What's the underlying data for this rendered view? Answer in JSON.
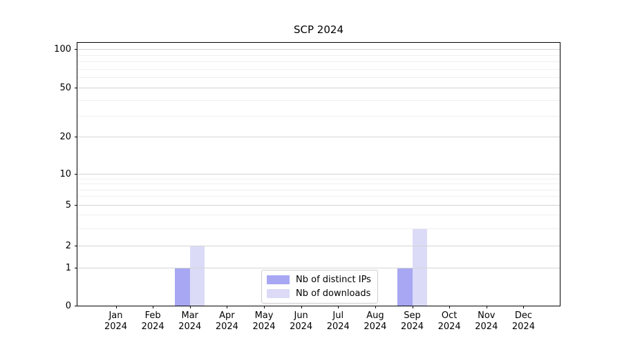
{
  "title": "SCP 2024",
  "legend": {
    "items": [
      {
        "label": "Nb of distinct IPs"
      },
      {
        "label": "Nb of downloads"
      }
    ]
  },
  "colors": {
    "distinct_ips_bar": "#a7a7f3",
    "downloads_bar": "#dbdbf8",
    "grid_major": "#d4d4d4",
    "grid_minor": "#efefef",
    "axis": "#000000"
  },
  "yaxis": {
    "tick_labels": [
      "100",
      "50",
      "20",
      "10",
      "5",
      "2",
      "1",
      "0"
    ],
    "tick_values": [
      100,
      50,
      20,
      10,
      5,
      2,
      1,
      0
    ]
  },
  "xaxis": {
    "months": [
      {
        "label": "Jan",
        "year": "2024"
      },
      {
        "label": "Feb",
        "year": "2024"
      },
      {
        "label": "Mar",
        "year": "2024"
      },
      {
        "label": "Apr",
        "year": "2024"
      },
      {
        "label": "May",
        "year": "2024"
      },
      {
        "label": "Jun",
        "year": "2024"
      },
      {
        "label": "Jul",
        "year": "2024"
      },
      {
        "label": "Aug",
        "year": "2024"
      },
      {
        "label": "Sep",
        "year": "2024"
      },
      {
        "label": "Oct",
        "year": "2024"
      },
      {
        "label": "Nov",
        "year": "2024"
      },
      {
        "label": "Dec",
        "year": "2024"
      }
    ]
  },
  "chart_data": {
    "type": "bar",
    "title": "SCP 2024",
    "categories": [
      "Jan 2024",
      "Feb 2024",
      "Mar 2024",
      "Apr 2024",
      "May 2024",
      "Jun 2024",
      "Jul 2024",
      "Aug 2024",
      "Sep 2024",
      "Oct 2024",
      "Nov 2024",
      "Dec 2024"
    ],
    "series": [
      {
        "name": "Nb of distinct IPs",
        "color": "#a7a7f3",
        "values": [
          0,
          0,
          1,
          0,
          0,
          0,
          0,
          0,
          1,
          0,
          0,
          0
        ]
      },
      {
        "name": "Nb of downloads",
        "color": "#dbdbf8",
        "values": [
          0,
          0,
          2,
          0,
          0,
          0,
          0,
          0,
          3,
          0,
          0,
          0
        ]
      }
    ],
    "xlabel": "",
    "ylabel": "",
    "yticks": [
      0,
      1,
      2,
      5,
      10,
      20,
      50,
      100
    ],
    "yscale": "log-like with linear 0-1 segment",
    "ylim": [
      0,
      112
    ],
    "grid": "horizontal major and minor gridlines only",
    "legend_position": "inside lower center"
  }
}
